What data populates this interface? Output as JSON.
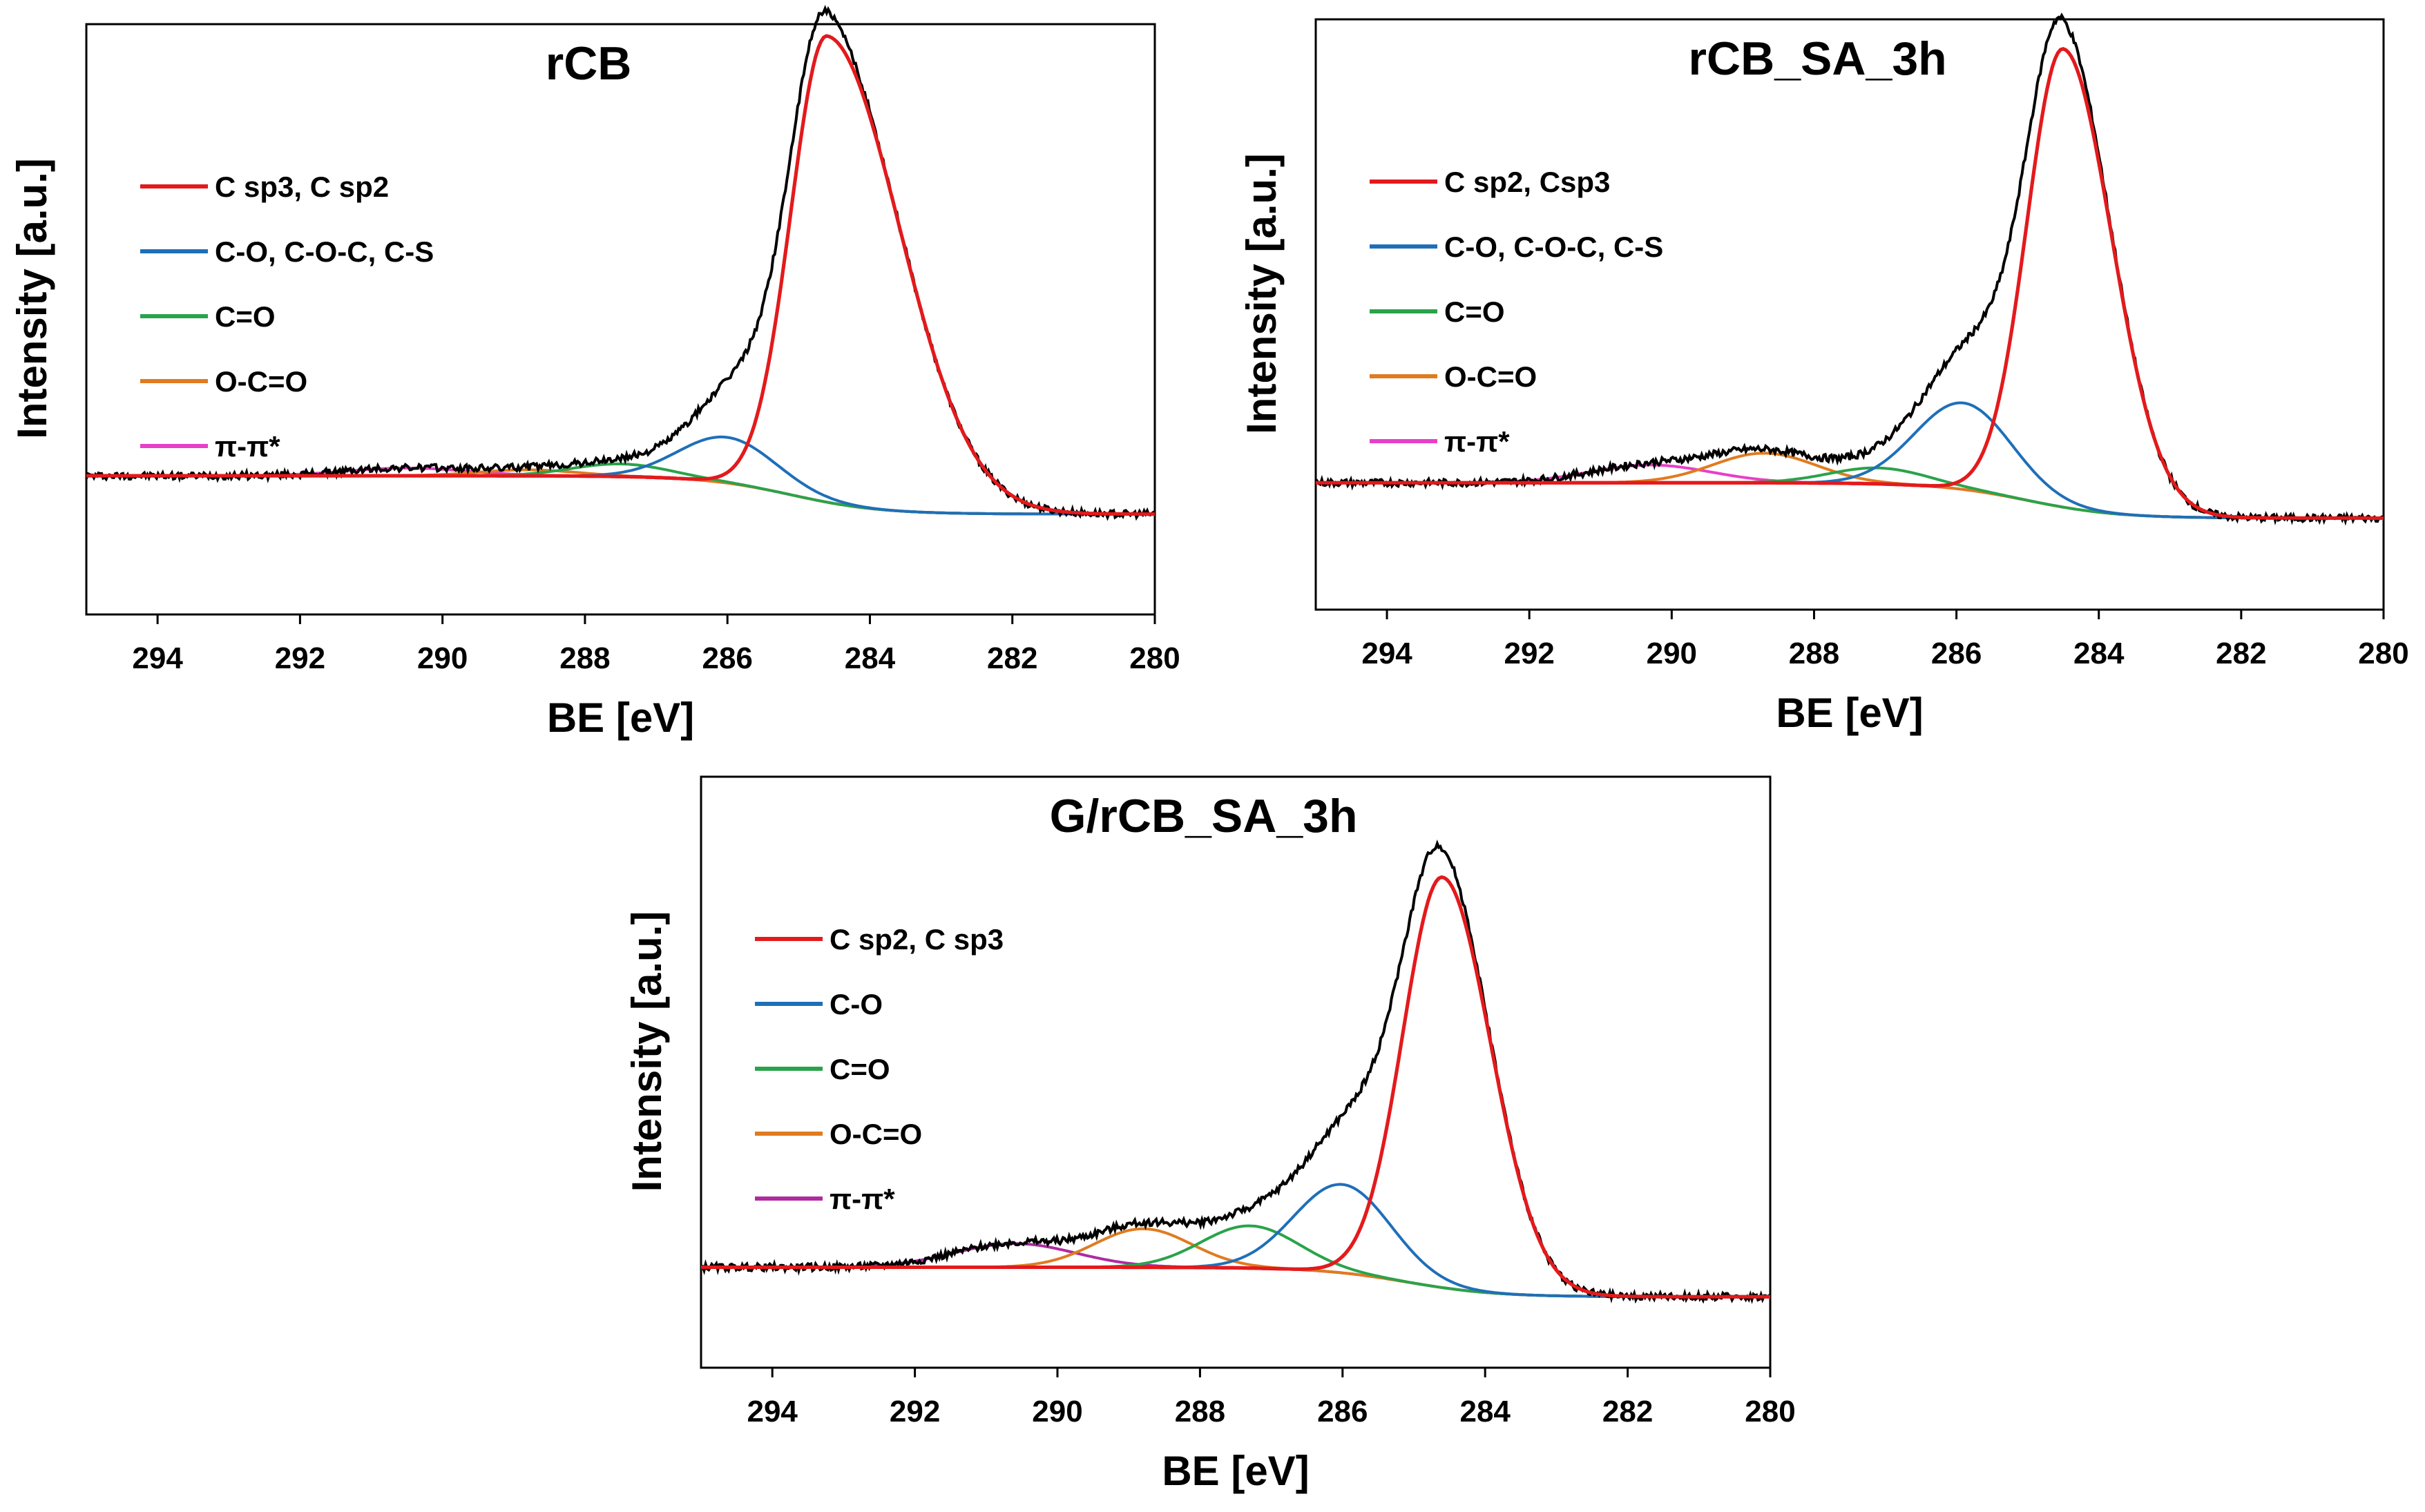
{
  "chart_data": [
    {
      "type": "line",
      "title": "rCB",
      "xlabel": "BE [eV]",
      "ylabel": "Intensity [a.u.]",
      "xlim": [
        295,
        280
      ],
      "x_ticks": [
        "294",
        "292",
        "290",
        "288",
        "286",
        "284",
        "282",
        "280"
      ],
      "y_axis_values_shown": false,
      "legend_position": "top-left",
      "background": {
        "start_intensity": 0.235,
        "end_intensity": 0.17
      },
      "raw_data": {
        "name": "raw spectrum",
        "color": "#000000"
      },
      "series": [
        {
          "name": "C sp3, C sp2",
          "color": "#e31a1c",
          "center": 284.6,
          "peak_intensity": 0.98,
          "fwhm_left": 2.4,
          "fwhm_right": 1.2
        },
        {
          "name": "C-O, C-O-C, C-S",
          "color": "#1f6fb8",
          "center": 286.0,
          "peak_intensity": 0.3,
          "fwhm": 1.6
        },
        {
          "name": "C=O",
          "color": "#2aa34a",
          "center": 287.5,
          "peak_intensity": 0.255,
          "fwhm": 1.6
        },
        {
          "name": "O-C=O",
          "color": "#e07b1f",
          "center": 288.8,
          "peak_intensity": 0.245,
          "fwhm": 1.6
        },
        {
          "name": "π-π*",
          "color": "#e83ec9",
          "center": 290.5,
          "peak_intensity": 0.248,
          "fwhm": 2.0
        }
      ]
    },
    {
      "type": "line",
      "title": "rCB_SA_3h",
      "xlabel": "BE [eV]",
      "ylabel": "Intensity [a.u.]",
      "xlim": [
        295,
        280
      ],
      "x_ticks": [
        "294",
        "292",
        "290",
        "288",
        "286",
        "284",
        "282",
        "280"
      ],
      "y_axis_values_shown": false,
      "legend_position": "top-left",
      "background": {
        "start_intensity": 0.215,
        "end_intensity": 0.155
      },
      "raw_data": {
        "name": "raw spectrum",
        "color": "#000000"
      },
      "series": [
        {
          "name": "C sp2, Csp3",
          "color": "#e31a1c",
          "center": 284.5,
          "peak_intensity": 0.95,
          "fwhm_left": 1.6,
          "fwhm_right": 1.2
        },
        {
          "name": "C-O, C-O-C, C-S",
          "color": "#1f6fb8",
          "center": 285.9,
          "peak_intensity": 0.35,
          "fwhm": 1.6
        },
        {
          "name": "C=O",
          "color": "#2aa34a",
          "center": 287.1,
          "peak_intensity": 0.24,
          "fwhm": 1.6
        },
        {
          "name": "O-C=O",
          "color": "#e07b1f",
          "center": 288.7,
          "peak_intensity": 0.265,
          "fwhm": 1.7
        },
        {
          "name": "π-π*",
          "color": "#e83ec9",
          "center": 290.3,
          "peak_intensity": 0.245,
          "fwhm": 2.0
        }
      ]
    },
    {
      "type": "line",
      "title": "G/rCB_SA_3h",
      "xlabel": "BE [eV]",
      "ylabel": "Intensity [a.u.]",
      "xlim": [
        295,
        280
      ],
      "x_ticks": [
        "294",
        "292",
        "290",
        "288",
        "286",
        "284",
        "282",
        "280"
      ],
      "y_axis_values_shown": false,
      "legend_position": "top-left",
      "background": {
        "start_intensity": 0.17,
        "end_intensity": 0.12
      },
      "raw_data": {
        "name": "raw spectrum",
        "color": "#000000"
      },
      "series": [
        {
          "name": "C sp2, C sp3",
          "color": "#e31a1c",
          "center": 284.6,
          "peak_intensity": 0.83,
          "fwhm_left": 1.6,
          "fwhm_right": 1.3
        },
        {
          "name": "C-O",
          "color": "#1f6fb8",
          "center": 286.0,
          "peak_intensity": 0.31,
          "fwhm": 1.6
        },
        {
          "name": "C=O",
          "color": "#2aa34a",
          "center": 287.3,
          "peak_intensity": 0.24,
          "fwhm": 1.6
        },
        {
          "name": "O-C=O",
          "color": "#e07b1f",
          "center": 288.8,
          "peak_intensity": 0.235,
          "fwhm": 1.6
        },
        {
          "name": "π-π*",
          "color": "#b02aa0",
          "center": 290.6,
          "peak_intensity": 0.21,
          "fwhm": 2.0
        }
      ]
    }
  ]
}
